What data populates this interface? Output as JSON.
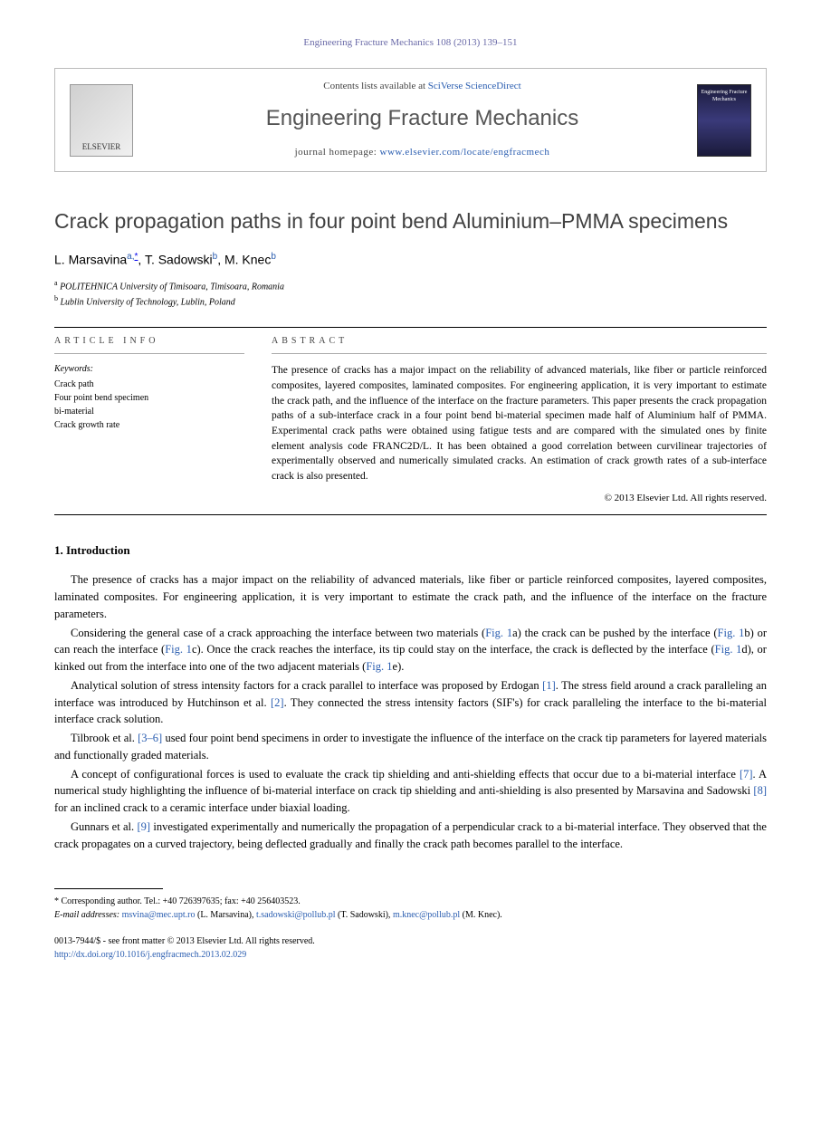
{
  "journal_ref": "Engineering Fracture Mechanics 108 (2013) 139–151",
  "header": {
    "elsevier": "ELSEVIER",
    "contents_prefix": "Contents lists available at ",
    "contents_link": "SciVerse ScienceDirect",
    "journal_title": "Engineering Fracture Mechanics",
    "homepage_prefix": "journal homepage: ",
    "homepage_url": "www.elsevier.com/locate/engfracmech",
    "cover_text": "Engineering Fracture Mechanics"
  },
  "article": {
    "title": "Crack propagation paths in four point bend Aluminium–PMMA specimens",
    "authors_html_parts": {
      "a1_name": "L. Marsavina",
      "a1_sup": "a,",
      "a1_corr": "*",
      "sep1": ", ",
      "a2_name": "T. Sadowski",
      "a2_sup": "b",
      "sep2": ", ",
      "a3_name": "M. Knec",
      "a3_sup": "b"
    },
    "affiliations": {
      "a": "POLITEHNICA University of Timisoara, Timisoara, Romania",
      "b": "Lublin University of Technology, Lublin, Poland"
    }
  },
  "info": {
    "heading": "ARTICLE INFO",
    "keywords_label": "Keywords:",
    "keywords": [
      "Crack path",
      "Four point bend specimen",
      "bi-material",
      "Crack growth rate"
    ]
  },
  "abstract": {
    "heading": "ABSTRACT",
    "text": "The presence of cracks has a major impact on the reliability of advanced materials, like fiber or particle reinforced composites, layered composites, laminated composites. For engineering application, it is very important to estimate the crack path, and the influence of the interface on the fracture parameters. This paper presents the crack propagation paths of a sub-interface crack in a four point bend bi-material specimen made half of Aluminium half of PMMA. Experimental crack paths were obtained using fatigue tests and are compared with the simulated ones by finite element analysis code FRANC2D/L. It has been obtained a good correlation between curvilinear trajectories of experimentally observed and numerically simulated cracks. An estimation of crack growth rates of a sub-interface crack is also presented.",
    "copyright": "© 2013 Elsevier Ltd. All rights reserved."
  },
  "sections": {
    "intro_heading": "1. Introduction",
    "p1": "The presence of cracks has a major impact on the reliability of advanced materials, like fiber or particle reinforced composites, layered composites, laminated composites. For engineering application, it is very important to estimate the crack path, and the influence of the interface on the fracture parameters.",
    "p2_a": "Considering the general case of a crack approaching the interface between two materials (",
    "p2_fig1a": "Fig. 1",
    "p2_b": "a) the crack can be pushed by the interface (",
    "p2_fig1b": "Fig. 1",
    "p2_c": "b) or can reach the interface (",
    "p2_fig1c": "Fig. 1",
    "p2_d": "c). Once the crack reaches the interface, its tip could stay on the interface, the crack is deflected by the interface (",
    "p2_fig1d": "Fig. 1",
    "p2_e": "d), or kinked out from the interface into one of the two adjacent materials (",
    "p2_fig1e": "Fig. 1",
    "p2_f": "e).",
    "p3_a": "Analytical solution of stress intensity factors for a crack parallel to interface was proposed by Erdogan ",
    "p3_r1": "[1]",
    "p3_b": ". The stress field around a crack paralleling an interface was introduced by Hutchinson et al. ",
    "p3_r2": "[2]",
    "p3_c": ". They connected the stress intensity factors (SIF's) for crack paralleling the interface to the bi-material interface crack solution.",
    "p4_a": "Tilbrook et al. ",
    "p4_r": "[3–6]",
    "p4_b": " used four point bend specimens in order to investigate the influence of the interface on the crack tip parameters for layered materials and functionally graded materials.",
    "p5_a": "A concept of configurational forces is used to evaluate the crack tip shielding and anti-shielding effects that occur due to a bi-material interface ",
    "p5_r7": "[7]",
    "p5_b": ". A numerical study highlighting the influence of bi-material interface on crack tip shielding and anti-shielding is also presented by Marsavina and Sadowski ",
    "p5_r8": "[8]",
    "p5_c": " for an inclined crack to a ceramic interface under biaxial loading.",
    "p6_a": "Gunnars et al. ",
    "p6_r9": "[9]",
    "p6_b": " investigated experimentally and numerically the propagation of a perpendicular crack to a bi-material interface. They observed that the crack propagates on a curved trajectory, being deflected gradually and finally the crack path becomes parallel to the interface."
  },
  "footnotes": {
    "corr": "* Corresponding author. Tel.: +40 726397635; fax: +40 256403523.",
    "email_label": "E-mail addresses: ",
    "e1": "msvina@mec.upt.ro",
    "e1_who": " (L. Marsavina), ",
    "e2": "t.sadowski@pollub.pl",
    "e2_who": " (T. Sadowski), ",
    "e3": "m.knec@pollub.pl",
    "e3_who": " (M. Knec)."
  },
  "bottom": {
    "issn": "0013-7944/$ - see front matter © 2013 Elsevier Ltd. All rights reserved.",
    "doi": "http://dx.doi.org/10.1016/j.engfracmech.2013.02.029"
  }
}
